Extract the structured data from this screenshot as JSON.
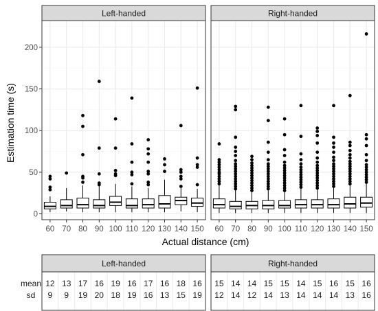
{
  "chart_data": {
    "type": "boxplot",
    "xlabel": "Actual distance (cm)",
    "ylabel": "Estimation time (s)",
    "ylim": [
      -7,
      232
    ],
    "yticks": [
      0,
      50,
      100,
      150,
      200
    ],
    "categories": [
      "60",
      "70",
      "80",
      "90",
      "100",
      "110",
      "120",
      "130",
      "140",
      "150"
    ],
    "grid": true,
    "panels": [
      {
        "name": "Left-handed",
        "boxes": [
          {
            "lower": 2,
            "q1": 6,
            "median": 9,
            "q3": 14,
            "upper": 21,
            "outliers": [
              29,
              32,
              42,
              45
            ]
          },
          {
            "lower": 3,
            "q1": 7,
            "median": 10,
            "q3": 17,
            "upper": 31,
            "outliers": [
              49
            ]
          },
          {
            "lower": 2,
            "q1": 7,
            "median": 11,
            "q3": 19,
            "upper": 34,
            "outliers": [
              38,
              43,
              45,
              71,
              105,
              118
            ]
          },
          {
            "lower": 2,
            "q1": 7,
            "median": 10,
            "q3": 17,
            "upper": 33,
            "outliers": [
              35,
              37,
              48,
              79,
              159
            ]
          },
          {
            "lower": 2,
            "q1": 10,
            "median": 14,
            "q3": 21,
            "upper": 36,
            "outliers": [
              46,
              48,
              52,
              79,
              114
            ]
          },
          {
            "lower": 2,
            "q1": 7,
            "median": 10,
            "q3": 18,
            "upper": 33,
            "outliers": [
              36,
              47,
              50,
              62,
              84,
              139
            ]
          },
          {
            "lower": 2,
            "q1": 7,
            "median": 11,
            "q3": 18,
            "upper": 31,
            "outliers": [
              35,
              38,
              48,
              51,
              62,
              72,
              78,
              89
            ]
          },
          {
            "lower": 2,
            "q1": 7,
            "median": 12,
            "q3": 22,
            "upper": 41,
            "outliers": [
              51,
              59,
              66
            ]
          },
          {
            "lower": 3,
            "q1": 11,
            "median": 16,
            "q3": 20,
            "upper": 31,
            "outliers": [
              33,
              42,
              45,
              50,
              53,
              106
            ]
          },
          {
            "lower": 2,
            "q1": 9,
            "median": 13,
            "q3": 19,
            "upper": 30,
            "outliers": [
              35,
              56,
              59,
              67,
              151
            ]
          }
        ]
      },
      {
        "name": "Right-handed",
        "boxes": [
          {
            "lower": 1,
            "q1": 7,
            "median": 11,
            "q3": 18,
            "upper": 35,
            "outliers": [
              36,
              39,
              42,
              45,
              48,
              50,
              53,
              56,
              59,
              62,
              65,
              84
            ]
          },
          {
            "lower": 1,
            "q1": 6,
            "median": 9,
            "q3": 15,
            "upper": 29,
            "outliers": [
              30,
              33,
              36,
              39,
              42,
              45,
              48,
              51,
              54,
              57,
              60,
              64,
              70,
              75,
              80,
              92,
              125,
              129
            ]
          },
          {
            "lower": 1,
            "q1": 6,
            "median": 10,
            "q3": 15,
            "upper": 27,
            "outliers": [
              28,
              31,
              34,
              37,
              40,
              43,
              46,
              49,
              52,
              55,
              58,
              61,
              65,
              69
            ]
          },
          {
            "lower": 1,
            "q1": 6,
            "median": 10,
            "q3": 16,
            "upper": 29,
            "outliers": [
              30,
              33,
              36,
              39,
              42,
              45,
              48,
              51,
              54,
              57,
              60,
              65,
              74,
              86,
              112,
              128
            ]
          },
          {
            "lower": 1,
            "q1": 7,
            "median": 10,
            "q3": 16,
            "upper": 27,
            "outliers": [
              28,
              31,
              34,
              37,
              40,
              43,
              46,
              49,
              52,
              55,
              58,
              62,
              70,
              77,
              95,
              114
            ]
          },
          {
            "lower": 1,
            "q1": 7,
            "median": 11,
            "q3": 17,
            "upper": 31,
            "outliers": [
              32,
              35,
              38,
              41,
              44,
              47,
              50,
              53,
              56,
              60,
              65,
              72,
              93,
              130
            ]
          },
          {
            "lower": 1,
            "q1": 7,
            "median": 11,
            "q3": 17,
            "upper": 30,
            "outliers": [
              31,
              34,
              37,
              40,
              43,
              46,
              49,
              52,
              55,
              58,
              62,
              67,
              74,
              85,
              94,
              99,
              103
            ]
          },
          {
            "lower": 1,
            "q1": 7,
            "median": 11,
            "q3": 18,
            "upper": 32,
            "outliers": [
              33,
              36,
              39,
              42,
              45,
              48,
              51,
              54,
              57,
              60,
              64,
              68,
              74,
              80,
              85,
              92,
              130
            ]
          },
          {
            "lower": 1,
            "q1": 7,
            "median": 12,
            "q3": 20,
            "upper": 35,
            "outliers": [
              36,
              39,
              42,
              45,
              48,
              51,
              54,
              57,
              60,
              63,
              67,
              71,
              76,
              82,
              86,
              142
            ]
          },
          {
            "lower": 1,
            "q1": 8,
            "median": 13,
            "q3": 20,
            "upper": 37,
            "outliers": [
              38,
              41,
              44,
              47,
              50,
              53,
              56,
              59,
              64,
              71,
              82,
              90,
              95,
              216
            ]
          }
        ]
      }
    ]
  },
  "summary_table": {
    "row_labels": [
      "mean",
      "sd"
    ],
    "panels": [
      {
        "name": "Left-handed",
        "mean": [
          "12",
          "13",
          "17",
          "16",
          "19",
          "16",
          "17",
          "16",
          "18",
          "16"
        ],
        "sd": [
          "9",
          "9",
          "19",
          "20",
          "18",
          "19",
          "16",
          "13",
          "15",
          "19"
        ]
      },
      {
        "name": "Right-handed",
        "mean": [
          "15",
          "14",
          "14",
          "15",
          "15",
          "14",
          "15",
          "16",
          "15",
          "16"
        ],
        "sd": [
          "12",
          "14",
          "12",
          "14",
          "13",
          "14",
          "14",
          "14",
          "13",
          "16"
        ]
      }
    ]
  },
  "colors": {
    "strip_fill": "#d9d9d9",
    "panel_border": "#333333",
    "grid_major": "#ebebeb",
    "grid_minor": "#f5f5f5",
    "box_fill": "#ffffff",
    "ink": "#000000",
    "tick_text": "#4d4d4d"
  }
}
